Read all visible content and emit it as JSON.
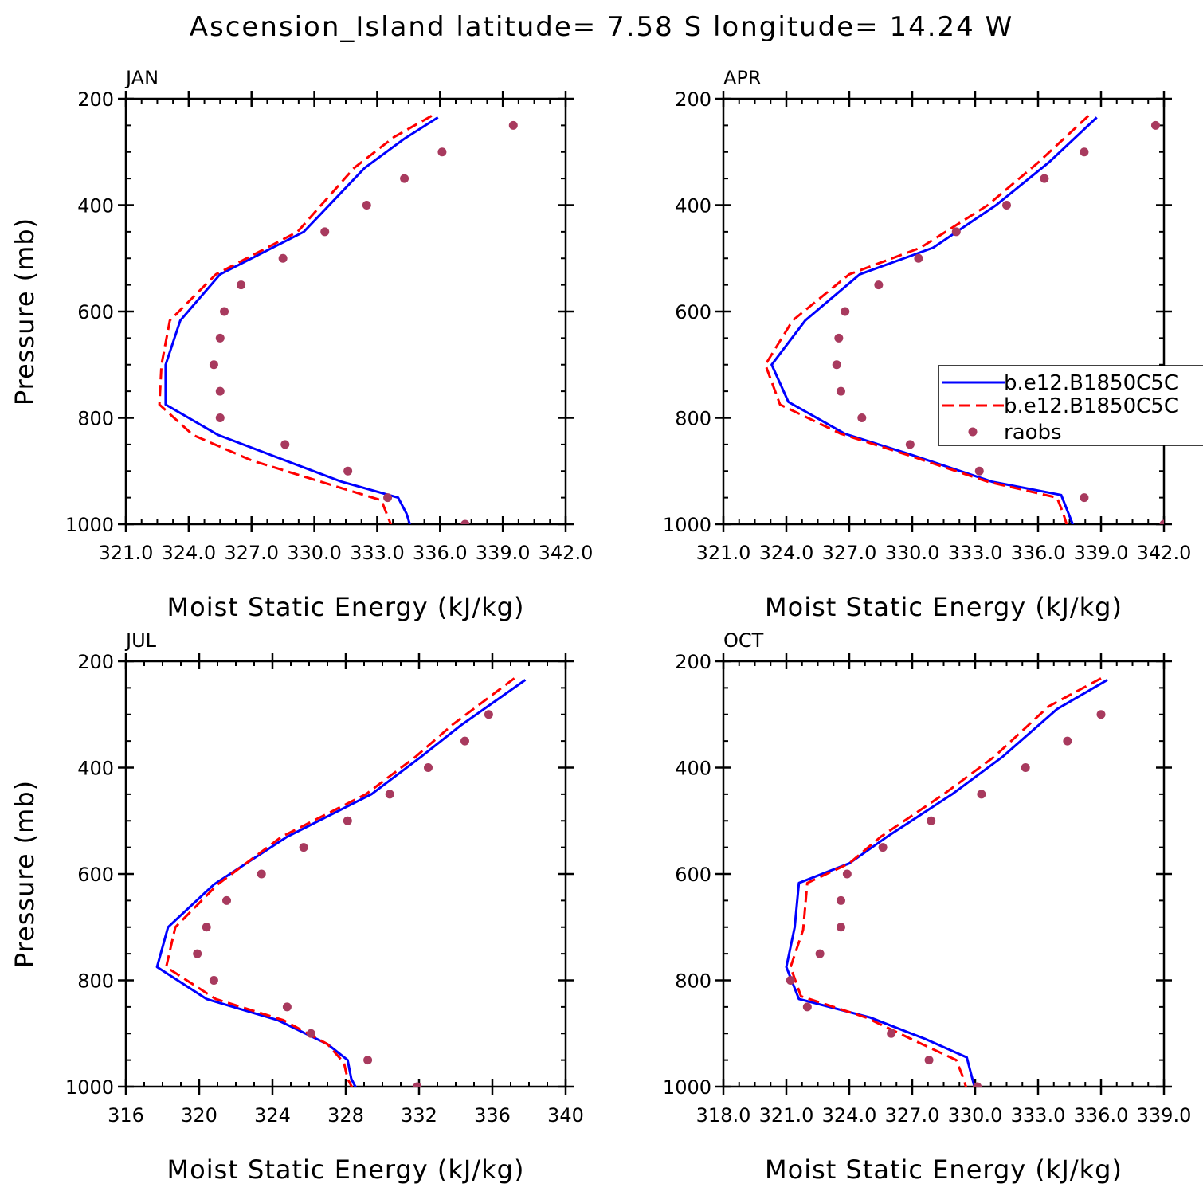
{
  "title": "Ascension_Island   latitude= 7.58 S longitude= 14.24 W",
  "legend": {
    "entries": [
      {
        "label": "b.e12.B1850C5C",
        "color": "#0000ff",
        "style": "solid"
      },
      {
        "label": "b.e12.B1850C5C",
        "color": "#ff0000",
        "style": "dashed"
      },
      {
        "label": "raobs",
        "color": "#a83a5e",
        "style": "marker"
      }
    ]
  },
  "chart_data": [
    {
      "type": "line",
      "panel": "JAN",
      "xlabel": "Moist Static Energy (kJ/kg)",
      "ylabel": "Pressure (mb)",
      "xlim": [
        321.0,
        342.0
      ],
      "xticks": [
        321.0,
        324.0,
        327.0,
        330.0,
        333.0,
        336.0,
        339.0,
        342.0
      ],
      "xtick_labels": [
        "321.0",
        "324.0",
        "327.0",
        "330.0",
        "333.0",
        "336.0",
        "339.0",
        "342.0"
      ],
      "ylim": [
        1000,
        200
      ],
      "yticks": [
        200,
        400,
        600,
        800,
        1000
      ],
      "ytick_labels": [
        "200",
        "400",
        "600",
        "800",
        "1000"
      ],
      "series": [
        {
          "name": "b.e12.B1850C5C",
          "color": "#0000ff",
          "style": "solid",
          "x": [
            335.9,
            334.3,
            332.4,
            329.5,
            325.5,
            323.6,
            322.9,
            322.9,
            325.4,
            328.6,
            331.3,
            334.0,
            334.4,
            334.6
          ],
          "y": [
            235,
            275,
            330,
            450,
            530,
            617,
            700,
            775,
            832,
            880,
            920,
            950,
            980,
            1005
          ]
        },
        {
          "name": "b.e12.B1850C5C",
          "color": "#ff0000",
          "style": "dashed",
          "x": [
            335.6,
            333.8,
            331.9,
            329.2,
            325.3,
            323.1,
            322.7,
            322.6,
            324.2,
            327.0,
            330.3,
            333.2,
            333.5,
            333.7
          ],
          "y": [
            232,
            272,
            330,
            450,
            530,
            617,
            700,
            775,
            832,
            880,
            920,
            955,
            985,
            1005
          ]
        }
      ],
      "raobs": {
        "x": [
          339.5,
          336.1,
          334.3,
          332.5,
          330.5,
          328.5,
          326.5,
          325.7,
          325.5,
          325.2,
          325.5,
          325.5,
          328.6,
          331.6,
          333.5,
          337.2
        ],
        "y": [
          250,
          300,
          350,
          400,
          450,
          500,
          550,
          600,
          650,
          700,
          750,
          800,
          850,
          900,
          950,
          1000
        ]
      }
    },
    {
      "type": "line",
      "panel": "APR",
      "xlabel": "Moist Static Energy (kJ/kg)",
      "ylabel": "",
      "xlim": [
        321.0,
        342.0
      ],
      "xticks": [
        321.0,
        324.0,
        327.0,
        330.0,
        333.0,
        336.0,
        339.0,
        342.0
      ],
      "xtick_labels": [
        "321.0",
        "324.0",
        "327.0",
        "330.0",
        "333.0",
        "336.0",
        "339.0",
        "342.0"
      ],
      "ylim": [
        1000,
        200
      ],
      "yticks": [
        200,
        400,
        600,
        800,
        1000
      ],
      "ytick_labels": [
        "200",
        "400",
        "600",
        "800",
        "1000"
      ],
      "series": [
        {
          "name": "b.e12.B1850C5C",
          "color": "#0000ff",
          "style": "solid",
          "x": [
            338.8,
            336.5,
            334.0,
            331.0,
            327.5,
            324.9,
            323.3,
            324.1,
            326.8,
            330.0,
            333.8,
            337.1,
            337.4,
            337.7
          ],
          "y": [
            235,
            320,
            400,
            480,
            530,
            617,
            700,
            770,
            830,
            870,
            920,
            945,
            975,
            1005
          ]
        },
        {
          "name": "b.e12.B1850C5C",
          "color": "#ff0000",
          "style": "dashed",
          "x": [
            338.4,
            336.0,
            333.6,
            330.4,
            327.0,
            324.3,
            323.0,
            323.7,
            326.6,
            329.8,
            333.6,
            336.9,
            337.2,
            337.4
          ],
          "y": [
            232,
            320,
            400,
            480,
            530,
            617,
            700,
            775,
            830,
            870,
            920,
            950,
            980,
            1005
          ]
        }
      ],
      "raobs": {
        "x": [
          341.6,
          338.2,
          336.3,
          334.5,
          332.1,
          330.3,
          328.4,
          326.8,
          326.5,
          326.4,
          326.6,
          327.6,
          329.9,
          333.2,
          338.2,
          342.0
        ],
        "y": [
          250,
          300,
          350,
          400,
          450,
          500,
          550,
          600,
          650,
          700,
          750,
          800,
          850,
          900,
          950,
          1000
        ]
      }
    },
    {
      "type": "line",
      "panel": "JUL",
      "xlabel": "Moist Static Energy (kJ/kg)",
      "ylabel": "Pressure (mb)",
      "xlim": [
        316,
        340
      ],
      "xticks": [
        316,
        320,
        324,
        328,
        332,
        336,
        340
      ],
      "xtick_labels": [
        "316",
        "320",
        "324",
        "328",
        "332",
        "336",
        "340"
      ],
      "ylim": [
        1000,
        200
      ],
      "yticks": [
        200,
        400,
        600,
        800,
        1000
      ],
      "ytick_labels": [
        "200",
        "400",
        "600",
        "800",
        "1000"
      ],
      "series": [
        {
          "name": "b.e12.B1850C5C",
          "color": "#0000ff",
          "style": "solid",
          "x": [
            337.8,
            334.3,
            332.1,
            329.4,
            324.8,
            320.8,
            318.3,
            317.7,
            320.4,
            324.3,
            327.0,
            328.1,
            328.3,
            328.6
          ],
          "y": [
            235,
            320,
            380,
            450,
            530,
            620,
            700,
            775,
            835,
            875,
            920,
            950,
            985,
            1005
          ]
        },
        {
          "name": "b.e12.B1850C5C",
          "color": "#ff0000",
          "style": "dashed",
          "x": [
            337.2,
            333.8,
            331.8,
            329.1,
            324.5,
            321.0,
            318.7,
            318.2,
            320.9,
            324.6,
            327.0,
            327.9,
            328.1,
            328.4
          ],
          "y": [
            232,
            320,
            380,
            450,
            530,
            620,
            700,
            775,
            835,
            875,
            920,
            955,
            985,
            1005
          ]
        }
      ],
      "raobs": {
        "x": [
          335.8,
          334.5,
          332.5,
          330.4,
          328.1,
          325.7,
          323.4,
          321.5,
          320.4,
          319.9,
          320.8,
          324.8,
          326.1,
          329.2,
          331.9
        ],
        "y": [
          300,
          350,
          400,
          450,
          500,
          550,
          600,
          650,
          700,
          750,
          800,
          850,
          900,
          950,
          1000
        ]
      }
    },
    {
      "type": "line",
      "panel": "OCT",
      "xlabel": "Moist Static Energy (kJ/kg)",
      "ylabel": "",
      "xlim": [
        318.0,
        339.0
      ],
      "xticks": [
        318.0,
        321.0,
        324.0,
        327.0,
        330.0,
        333.0,
        336.0,
        339.0
      ],
      "xtick_labels": [
        "318.0",
        "321.0",
        "324.0",
        "327.0",
        "330.0",
        "333.0",
        "336.0",
        "339.0"
      ],
      "ylim": [
        1000,
        200
      ],
      "yticks": [
        200,
        400,
        600,
        800,
        1000
      ],
      "ytick_labels": [
        "200",
        "400",
        "600",
        "800",
        "1000"
      ],
      "series": [
        {
          "name": "b.e12.B1850C5C",
          "color": "#0000ff",
          "style": "solid",
          "x": [
            336.3,
            333.9,
            331.3,
            328.9,
            325.8,
            324.0,
            321.6,
            321.4,
            321.0,
            321.6,
            325.0,
            327.6,
            329.6,
            329.8,
            330.0
          ],
          "y": [
            235,
            290,
            380,
            450,
            530,
            580,
            617,
            700,
            775,
            835,
            870,
            910,
            945,
            975,
            1005
          ]
        },
        {
          "name": "b.e12.B1850C5C",
          "color": "#ff0000",
          "style": "dashed",
          "x": [
            336.0,
            333.5,
            330.9,
            328.5,
            325.5,
            324.0,
            322.0,
            321.8,
            321.2,
            321.7,
            324.8,
            327.2,
            329.1,
            329.4,
            329.6
          ],
          "y": [
            232,
            285,
            380,
            450,
            530,
            580,
            617,
            705,
            775,
            830,
            870,
            915,
            950,
            980,
            1005
          ]
        }
      ],
      "raobs": {
        "x": [
          336.0,
          334.4,
          332.4,
          330.3,
          327.9,
          325.6,
          323.9,
          323.6,
          323.6,
          322.6,
          321.2,
          322.0,
          326.0,
          327.8,
          330.1
        ],
        "y": [
          300,
          350,
          400,
          450,
          500,
          550,
          600,
          650,
          700,
          750,
          800,
          850,
          900,
          950,
          1000
        ]
      }
    }
  ]
}
